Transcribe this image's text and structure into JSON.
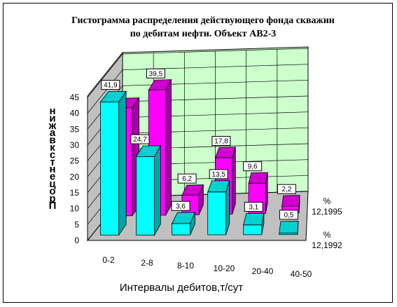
{
  "chart_data": {
    "type": "bar",
    "title_line1": "Гистограмма распределения действующего фонда скважин",
    "title_line2": "по дебитам нефти. Объект АВ2-3",
    "xlabel": "Интервалы дебитов,т/сут",
    "ylabel": "Процент скважин",
    "ylabel_glyphs": [
      "н",
      "и",
      "ж",
      "а",
      "в",
      "к",
      "с",
      "т",
      "н",
      "е",
      "ц",
      "о",
      "р",
      "П"
    ],
    "categories": [
      "0-2",
      "2-8",
      "8-10",
      "10-20",
      "20-40",
      "40-50"
    ],
    "yticks": [
      "0",
      "5",
      "10",
      "15",
      "20",
      "25",
      "30",
      "35",
      "40",
      "45"
    ],
    "ylim": [
      0,
      45
    ],
    "series": [
      {
        "name_line1": "%",
        "name_line2": "12,1995",
        "color": "#ff00ff",
        "values": [
          34.0,
          39.5,
          6.2,
          17.8,
          9.6,
          2.2
        ],
        "labels": [
          "",
          "39,5",
          "6,2",
          "17,8",
          "9,6",
          "2,2"
        ]
      },
      {
        "name_line1": "%",
        "name_line2": "12,1992",
        "color": "#00ffff",
        "values": [
          41.9,
          24.7,
          3.6,
          13.5,
          3.1,
          0.5
        ],
        "labels": [
          "41,9",
          "24,7",
          "3,6",
          "13,5",
          "3,1",
          "0,5"
        ]
      }
    ],
    "grid": true,
    "wall_color": "#ccffcc",
    "floor_color": "#c0c0c0",
    "legend_position": "right"
  }
}
